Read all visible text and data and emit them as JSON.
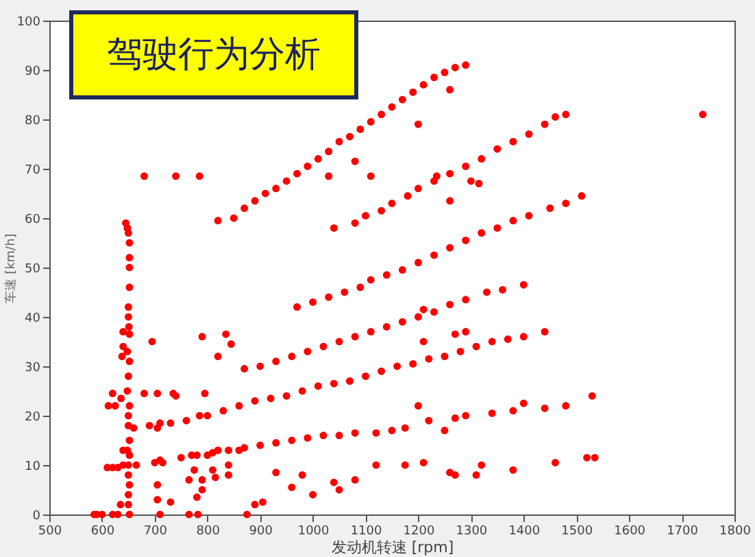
{
  "chart_data": {
    "type": "scatter",
    "title": "驾驶行为分析",
    "xlabel": "发动机转速 [rpm]",
    "ylabel": "车速 [km/h]",
    "xlim": [
      500,
      1800
    ],
    "ylim": [
      0,
      100
    ],
    "xticks": [
      500,
      600,
      700,
      800,
      900,
      1000,
      1100,
      1200,
      1300,
      1400,
      1500,
      1600,
      1700,
      1800
    ],
    "yticks": [
      0,
      10,
      20,
      30,
      40,
      50,
      60,
      70,
      80,
      90,
      100
    ],
    "grid": false,
    "marker": "circle",
    "series": [
      {
        "color": "#ff0000",
        "x": [
          820,
          850,
          870,
          890,
          910,
          930,
          950,
          970,
          990,
          1010,
          1030,
          1050,
          1070,
          1090,
          1110,
          1130,
          1150,
          1170,
          1190,
          1210,
          1230,
          1250,
          1270,
          1290,
          1030,
          1080,
          1110,
          1260,
          1200,
          1040,
          1080,
          1100,
          1130,
          1150,
          1180,
          1200,
          1230,
          1260,
          1290,
          1320,
          1350,
          1380,
          1410,
          1440,
          1460,
          1480,
          1235,
          1300,
          1315,
          1260,
          1740,
          970,
          1000,
          1030,
          1060,
          1090,
          1110,
          1140,
          1170,
          1200,
          1230,
          1260,
          1290,
          1320,
          1350,
          1380,
          1410,
          1450,
          1480,
          1510,
          1210,
          870,
          900,
          930,
          960,
          990,
          1020,
          1050,
          1080,
          1110,
          1140,
          1170,
          1200,
          1230,
          1260,
          1290,
          1330,
          1360,
          1400,
          1210,
          1270,
          1290,
          800,
          830,
          860,
          890,
          920,
          950,
          980,
          1010,
          1040,
          1070,
          1100,
          1130,
          1160,
          1190,
          1220,
          1250,
          1280,
          1310,
          1340,
          1370,
          1400,
          1440,
          750,
          780,
          810,
          840,
          870,
          900,
          930,
          960,
          990,
          1020,
          1050,
          1080,
          1120,
          1150,
          1175,
          1200,
          1220,
          1250,
          1270,
          1290,
          1340,
          1380,
          1400,
          1440,
          1480,
          1530,
          1210,
          1260,
          1270,
          1310,
          1320,
          1380,
          1460,
          1520,
          1535,
          1175,
          1120,
          1040,
          1050,
          1080,
          1000,
          960,
          980,
          930,
          890,
          905,
          875,
          840,
          840,
          860,
          645,
          648,
          650,
          652,
          652,
          652,
          652,
          650,
          650,
          651,
          652,
          648,
          652,
          650,
          648,
          652,
          650,
          650,
          652,
          648,
          652,
          650,
          650,
          652,
          650,
          650,
          652,
          640,
          640,
          638,
          636,
          620,
          612,
          625,
          610,
          620,
          630,
          640,
          640,
          635,
          630,
          620,
          600,
          590,
          585,
          660,
          665,
          680,
          740,
          785,
          695,
          680,
          705,
          735,
          740,
          795,
          690,
          705,
          710,
          730,
          760,
          785,
          700,
          710,
          715,
          705,
          705,
          730,
          710,
          765,
          782,
          765,
          775,
          770,
          780,
          790,
          790,
          800,
          815,
          820,
          835,
          820,
          790,
          845,
          810
        ],
        "values": [
          59.5,
          60,
          62,
          63.5,
          65,
          66,
          67.5,
          69,
          70.5,
          72,
          73.5,
          75.5,
          76.5,
          78,
          79.5,
          81,
          82.5,
          84,
          85.5,
          87,
          88.5,
          89.5,
          90.5,
          91,
          68.5,
          71.5,
          68.5,
          86,
          79,
          58,
          59,
          60.5,
          61.5,
          63,
          64.5,
          66,
          67.5,
          69,
          70.5,
          72,
          74,
          75.5,
          77,
          79,
          80.5,
          81,
          68.5,
          67.5,
          67,
          63.5,
          81,
          42,
          43,
          44,
          45,
          46,
          47.5,
          48.5,
          49.5,
          51,
          52.5,
          54,
          55.5,
          57,
          58,
          59.5,
          60.5,
          62,
          63,
          64.5,
          41.5,
          29.5,
          30,
          31,
          32,
          33,
          34,
          35,
          36,
          37,
          38,
          39,
          40,
          41,
          42.5,
          43.5,
          45,
          45.5,
          46.5,
          35,
          36.5,
          37,
          20,
          21,
          22,
          23,
          23.5,
          24,
          25,
          26,
          26.5,
          27,
          28,
          29,
          30,
          30.5,
          31.5,
          32,
          33,
          34,
          35,
          35.5,
          36,
          37,
          11.5,
          12,
          12.5,
          13,
          13.5,
          14,
          14.5,
          15,
          15.5,
          16,
          16,
          16.5,
          16.5,
          17,
          17.5,
          22,
          19,
          17,
          19.5,
          20,
          20.5,
          21,
          22.5,
          21.5,
          22,
          24,
          10.5,
          8.5,
          8,
          8,
          10,
          9,
          10.5,
          11.5,
          11.5,
          10,
          10,
          6.5,
          5,
          7,
          4,
          5.5,
          8,
          8.5,
          2,
          2.5,
          0,
          8,
          10,
          13,
          59,
          58,
          57,
          55,
          52,
          50,
          46,
          42,
          40,
          38,
          36.5,
          33,
          31,
          28,
          25,
          22,
          20,
          18,
          15,
          13,
          12,
          10,
          8,
          6,
          4,
          2,
          0,
          37,
          34,
          32,
          23.5,
          24.5,
          22,
          22,
          9.5,
          9.5,
          9.5,
          13,
          10,
          2,
          0,
          0,
          0,
          0,
          0,
          17.5,
          10,
          68.5,
          68.5,
          68.5,
          35,
          24.5,
          24.5,
          24.5,
          24,
          24.5,
          18,
          17.5,
          18.5,
          18.5,
          19,
          20,
          10.5,
          11,
          10.5,
          6,
          3,
          2.5,
          0,
          0,
          0,
          7,
          9,
          12,
          3.5,
          7,
          5,
          12,
          7.5,
          13,
          36.5,
          32,
          36,
          34.5,
          9
        ]
      }
    ]
  }
}
